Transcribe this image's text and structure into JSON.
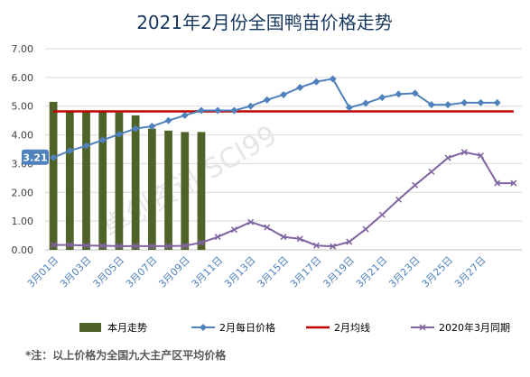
{
  "chart_data": {
    "type": "bar+line",
    "title": "2021年2月份全国鸭苗价格走势",
    "watermark": "卓创资讯 SCI99",
    "y_ticks": [
      "0.00",
      "1.00",
      "2.00",
      "3.00",
      "4.00",
      "5.00",
      "6.00",
      "7.00"
    ],
    "ylim": [
      0,
      7
    ],
    "grid": true,
    "x_tick_labels": [
      "3月01日",
      "3月03日",
      "3月05日",
      "3月07日",
      "3月09日",
      "3月11日",
      "3月13日",
      "3月15日",
      "3月17日",
      "3月19日",
      "3月21日",
      "3月23日",
      "3月25日",
      "3月27日"
    ],
    "callout": {
      "label": "3.21",
      "series": "2月每日价格",
      "value": 3.21
    },
    "legend_position": "bottom",
    "series": [
      {
        "name": "本月走势",
        "type": "bar",
        "color": "#4f6228",
        "values": [
          5.15,
          4.85,
          4.82,
          4.82,
          4.78,
          4.68,
          4.22,
          4.15,
          4.1,
          4.1
        ]
      },
      {
        "name": "2月每日价格",
        "type": "line",
        "color": "#4f81bd",
        "marker": "diamond",
        "values": [
          3.21,
          3.45,
          3.62,
          3.82,
          4.02,
          4.22,
          4.3,
          4.5,
          4.68,
          4.85,
          4.85,
          4.85,
          5.0,
          5.22,
          5.4,
          5.65,
          5.85,
          5.95,
          4.95,
          5.1,
          5.3,
          5.42,
          5.45,
          5.05,
          5.05,
          5.12,
          5.12,
          5.12
        ]
      },
      {
        "name": "2月均线",
        "type": "line",
        "color": "#c00000",
        "value": 4.82
      },
      {
        "name": "2020年3月同期",
        "type": "line",
        "color": "#8064a2",
        "marker": "x",
        "values": [
          0.17,
          0.17,
          0.15,
          0.14,
          0.13,
          0.13,
          0.13,
          0.13,
          0.14,
          0.25,
          0.45,
          0.7,
          0.97,
          0.78,
          0.45,
          0.38,
          0.15,
          0.12,
          0.28,
          0.72,
          1.22,
          1.75,
          2.25,
          2.72,
          3.2,
          3.4,
          3.28,
          2.32,
          2.32
        ]
      }
    ]
  },
  "footnote": "*注：以上价格为全国九大主产区平均价格"
}
